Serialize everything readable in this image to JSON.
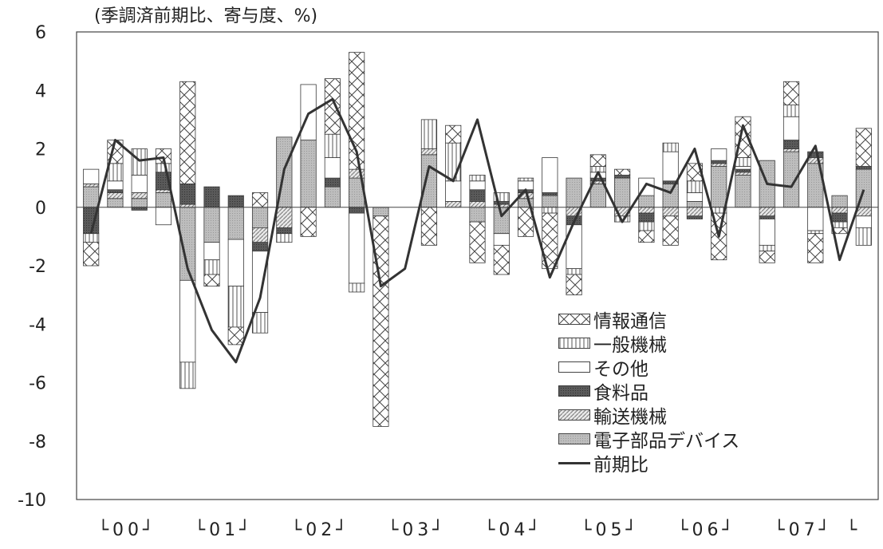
{
  "unit_label": "(季調済前期比、寄与度、%)",
  "chart_data": {
    "type": "bar",
    "stacked": true,
    "ylim": [
      -10,
      6
    ],
    "yticks": [
      6,
      4,
      2,
      0,
      -2,
      -4,
      -6,
      -8,
      -10
    ],
    "year_labels": [
      "└00┘",
      "└01┘",
      "└02┘",
      "└03┘",
      "└04┘",
      "└05┘",
      "└06┘",
      "└07┘",
      "└"
    ],
    "quarters_per_year": 4,
    "n_periods": 33,
    "legend": [
      "情報通信",
      "一般機械",
      "その他",
      "食料品",
      "輸送機械",
      "電子部品デバイス",
      "前期比"
    ],
    "series": [
      {
        "name": "電子部品デバイス",
        "values": [
          0.7,
          0.3,
          0.3,
          0.5,
          -2.5,
          -1.2,
          -1.1,
          -0.7,
          2.4,
          2.3,
          0.7,
          1.0,
          -0.3,
          0.0,
          1.8,
          0.0,
          -0.5,
          -0.9,
          0.3,
          0.4,
          1.0,
          0.8,
          1.0,
          0.4,
          0.8,
          0.2,
          1.4,
          1.1,
          1.6,
          1.9,
          1.5,
          0.4,
          1.3
        ]
      },
      {
        "name": "輸送機械",
        "values": [
          0.1,
          0.2,
          0.2,
          0.1,
          0.1,
          0.0,
          0.0,
          -0.5,
          -0.7,
          0.0,
          0.0,
          0.3,
          0.0,
          0.0,
          0.2,
          0.2,
          0.2,
          0.1,
          0.2,
          0.0,
          -0.3,
          0.1,
          -0.3,
          -0.2,
          -0.3,
          -0.3,
          0.1,
          0.1,
          -0.3,
          0.1,
          0.2,
          -0.2,
          -0.3
        ]
      },
      {
        "name": "食料品",
        "values": [
          -0.9,
          0.1,
          -0.1,
          0.6,
          0.7,
          0.7,
          0.4,
          -0.3,
          -0.2,
          0.0,
          0.3,
          -0.2,
          0.0,
          0.0,
          0.0,
          0.0,
          0.4,
          0.1,
          0.1,
          0.1,
          -0.3,
          0.1,
          0.1,
          -0.3,
          0.1,
          -0.1,
          0.1,
          0.1,
          -0.1,
          0.3,
          0.2,
          -0.3,
          0.1
        ]
      },
      {
        "name": "その他",
        "values": [
          0.5,
          0.3,
          0.6,
          -0.6,
          -2.8,
          -0.6,
          -1.6,
          -2.1,
          0.0,
          1.9,
          0.7,
          -2.4,
          0.0,
          0.0,
          0.0,
          0.7,
          0.3,
          -0.4,
          0.3,
          1.2,
          -1.5,
          0.2,
          0.0,
          0.6,
          1.0,
          0.3,
          0.4,
          0.1,
          -0.9,
          0.8,
          -0.8,
          0.0,
          -0.4
        ]
      },
      {
        "name": "一般機械",
        "values": [
          -0.3,
          0.6,
          0.9,
          0.3,
          -0.9,
          -0.5,
          -1.4,
          -0.7,
          -0.3,
          0.0,
          0.8,
          -0.3,
          0.0,
          0.0,
          1.0,
          1.3,
          0.2,
          0.3,
          0.1,
          -0.2,
          -0.2,
          0.2,
          -0.2,
          -0.3,
          0.3,
          0.4,
          -0.2,
          0.3,
          -0.2,
          0.4,
          -0.1,
          -0.2,
          -0.6
        ]
      },
      {
        "name": "情報通信",
        "values": [
          -0.8,
          0.8,
          0.0,
          0.5,
          3.5,
          -0.4,
          -0.6,
          0.5,
          0.0,
          -1.0,
          1.9,
          4.0,
          -7.2,
          0.0,
          -1.3,
          0.6,
          -1.4,
          -1.0,
          -1.0,
          -1.9,
          -0.7,
          0.4,
          0.2,
          -0.4,
          -1.0,
          0.6,
          -1.6,
          1.4,
          -0.4,
          0.8,
          -1.0,
          -0.2,
          1.3
        ]
      }
    ],
    "line": {
      "name": "前期比",
      "values": [
        -0.9,
        2.3,
        1.6,
        1.7,
        -2.1,
        -4.2,
        -5.3,
        -3.1,
        1.3,
        3.2,
        3.7,
        1.9,
        -2.7,
        -2.1,
        1.4,
        0.9,
        3.0,
        -0.3,
        0.6,
        -2.4,
        -0.5,
        1.2,
        -0.5,
        0.8,
        0.5,
        2.0,
        -1.0,
        2.8,
        0.8,
        0.7,
        2.1,
        -1.8,
        0.6
      ]
    },
    "colors": {
      "情報通信": "#ffffff",
      "一般機械": "#ffffff",
      "その他": "#ffffff",
      "食料品": "#555555",
      "輸送機械": "#e0e0e0",
      "電子部品デバイス": "#bdbdbd",
      "前期比": "#333333"
    }
  }
}
